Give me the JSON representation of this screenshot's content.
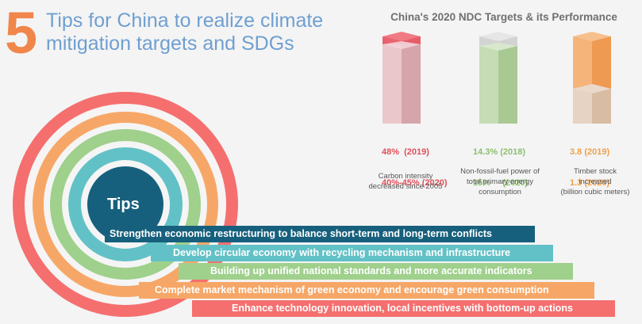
{
  "header": {
    "number": "5",
    "title_line1": "Tips for China to realize climate",
    "title_line2": "mitigation targets and SDGs"
  },
  "ndc": {
    "title": "China's 2020 NDC Targets & its Performance",
    "indicators": [
      {
        "line1": "48%  (2019)",
        "line2": "40%-45% (2020)",
        "desc1": "Carbon intensity",
        "desc2": "decreased since 2005",
        "desc3": "",
        "color": "#e0505a"
      },
      {
        "line1": "14.3% (2018)",
        "line2": "15%     (2020)",
        "desc1": "Non-fossil-fuel power of",
        "desc2": "total primary energy",
        "desc3": "consumption",
        "color": "#8cbf70"
      },
      {
        "line1": "3.8 (2019)",
        "line2": "1.3 (2020)",
        "desc1": "Timber stock",
        "desc2": "increased",
        "desc3": "(billion cubic meters)",
        "color": "#f0a04a"
      }
    ]
  },
  "tips": {
    "label": "Tips",
    "items": [
      "Strengthen economic restructuring to balance short-term and long-term conflicts",
      "Develop circular economy with recycling mechanism and infrastructure",
      "Building up unified national standards and more accurate indicators",
      "Complete market mechanism of green economy and encourage green consumption",
      "Enhance technology innovation, local incentives with bottom-up actions"
    ]
  }
}
